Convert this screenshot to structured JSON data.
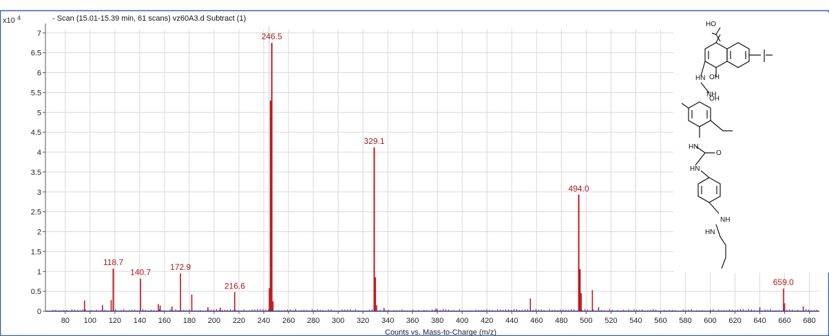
{
  "chart_data": {
    "type": "bar",
    "title": "- Scan (15.01-15.39 min, 61 scans) vz60A3.d  Subtract (1)",
    "xlabel": "Counts vs. Mass-to-Charge (m/z)",
    "ylabel": "",
    "y_multiplier": "x10",
    "y_exponent": "4",
    "xlim": [
      64,
      688
    ],
    "ylim": [
      0,
      7.1
    ],
    "grid": true,
    "x_ticks": [
      "80",
      "100",
      "120",
      "140",
      "160",
      "180",
      "200",
      "220",
      "240",
      "260",
      "280",
      "300",
      "320",
      "340",
      "360",
      "380",
      "400",
      "420",
      "440",
      "460",
      "480",
      "500",
      "520",
      "540",
      "560",
      "580",
      "600",
      "620",
      "640",
      "660",
      "680"
    ],
    "y_ticks": [
      "0",
      "0.5",
      "1",
      "1.5",
      "2",
      "2.5",
      "3",
      "3.5",
      "4",
      "4.5",
      "5",
      "5.5",
      "6",
      "6.5",
      "7"
    ],
    "labeled_peaks": [
      {
        "label": "118.7",
        "x": 118.7,
        "y": 1.07
      },
      {
        "label": "140.7",
        "x": 140.7,
        "y": 0.82
      },
      {
        "label": "172.9",
        "x": 172.9,
        "y": 0.95
      },
      {
        "label": "216.6",
        "x": 216.6,
        "y": 0.48
      },
      {
        "label": "246.5",
        "x": 246.5,
        "y": 6.75
      },
      {
        "label": "329.1",
        "x": 329.1,
        "y": 4.12
      },
      {
        "label": "494.0",
        "x": 494.0,
        "y": 2.93
      },
      {
        "label": "659.0",
        "x": 659.0,
        "y": 0.57
      }
    ],
    "peaks": [
      {
        "x": 95.5,
        "y": 0.27
      },
      {
        "x": 110.0,
        "y": 0.15
      },
      {
        "x": 117.0,
        "y": 0.28
      },
      {
        "x": 118.7,
        "y": 1.07
      },
      {
        "x": 140.7,
        "y": 0.82
      },
      {
        "x": 155.0,
        "y": 0.18
      },
      {
        "x": 156.5,
        "y": 0.14
      },
      {
        "x": 166.0,
        "y": 0.12
      },
      {
        "x": 172.9,
        "y": 0.95
      },
      {
        "x": 182.0,
        "y": 0.42
      },
      {
        "x": 195.0,
        "y": 0.1
      },
      {
        "x": 205.0,
        "y": 0.09
      },
      {
        "x": 216.6,
        "y": 0.48
      },
      {
        "x": 244.5,
        "y": 0.58
      },
      {
        "x": 245.5,
        "y": 5.3
      },
      {
        "x": 246.5,
        "y": 6.75
      },
      {
        "x": 247.5,
        "y": 0.25
      },
      {
        "x": 329.1,
        "y": 4.12
      },
      {
        "x": 330.1,
        "y": 0.85
      },
      {
        "x": 331.1,
        "y": 0.15
      },
      {
        "x": 337.0,
        "y": 0.08
      },
      {
        "x": 379.0,
        "y": 0.07
      },
      {
        "x": 455.0,
        "y": 0.32
      },
      {
        "x": 494.0,
        "y": 2.93
      },
      {
        "x": 495.0,
        "y": 1.06
      },
      {
        "x": 496.0,
        "y": 0.45
      },
      {
        "x": 505.0,
        "y": 0.53
      },
      {
        "x": 510.0,
        "y": 0.1
      },
      {
        "x": 640.0,
        "y": 0.1
      },
      {
        "x": 659.0,
        "y": 0.57
      },
      {
        "x": 660.0,
        "y": 0.2
      },
      {
        "x": 675.0,
        "y": 0.12
      }
    ]
  },
  "structure": {
    "labels": [
      "HO",
      "HN",
      "NH",
      "OH",
      "HN",
      "O",
      "HN",
      "NH",
      "HN",
      "OH"
    ]
  },
  "colors": {
    "spectrum": "#c01818",
    "baseline": "#2b3a9a",
    "frame": "#3b5fa8",
    "grid": "#d9d9d9",
    "highlight": "#cfe4ff"
  }
}
